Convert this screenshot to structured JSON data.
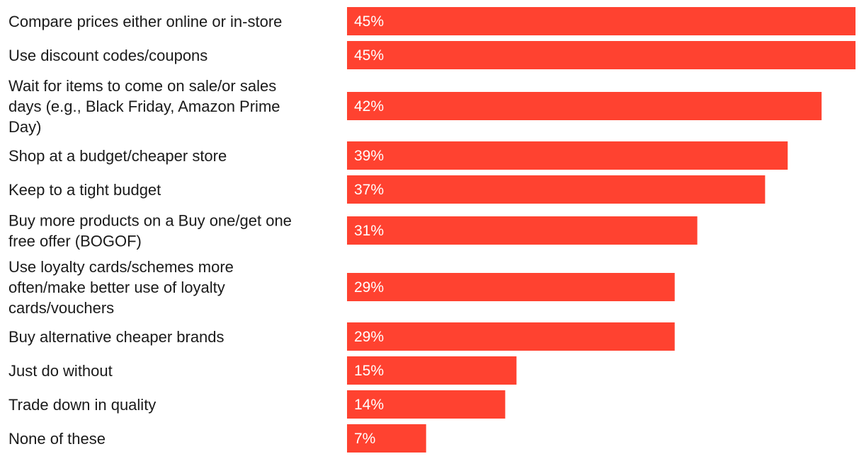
{
  "chart_data": {
    "type": "bar",
    "orientation": "horizontal",
    "title": "",
    "xlabel": "",
    "ylabel": "",
    "xlim": [
      0,
      45
    ],
    "grid": false,
    "legend": "none",
    "bar_color": "#ff4230",
    "categories": [
      [
        "Compare prices either online or in-store"
      ],
      [
        "Use discount codes/coupons"
      ],
      [
        "Wait for items to come on sale/or sales",
        "days (e.g., Black Friday, Amazon Prime",
        "Day)"
      ],
      [
        "Shop at a budget/cheaper store"
      ],
      [
        "Keep to a tight budget"
      ],
      [
        "Buy more products on a Buy one/get one",
        "free offer (BOGOF)"
      ],
      [
        "Use loyalty cards/schemes more",
        "often/make better use of loyalty",
        "cards/vouchers"
      ],
      [
        "Buy alternative cheaper brands"
      ],
      [
        "Just do without"
      ],
      [
        "Trade down in quality"
      ],
      [
        "None of these"
      ]
    ],
    "values": [
      45,
      45,
      42,
      39,
      37,
      31,
      29,
      29,
      15,
      14,
      7
    ],
    "value_labels": [
      "45%",
      "45%",
      "42%",
      "39%",
      "37%",
      "31%",
      "29%",
      "29%",
      "15%",
      "14%",
      "7%"
    ]
  }
}
